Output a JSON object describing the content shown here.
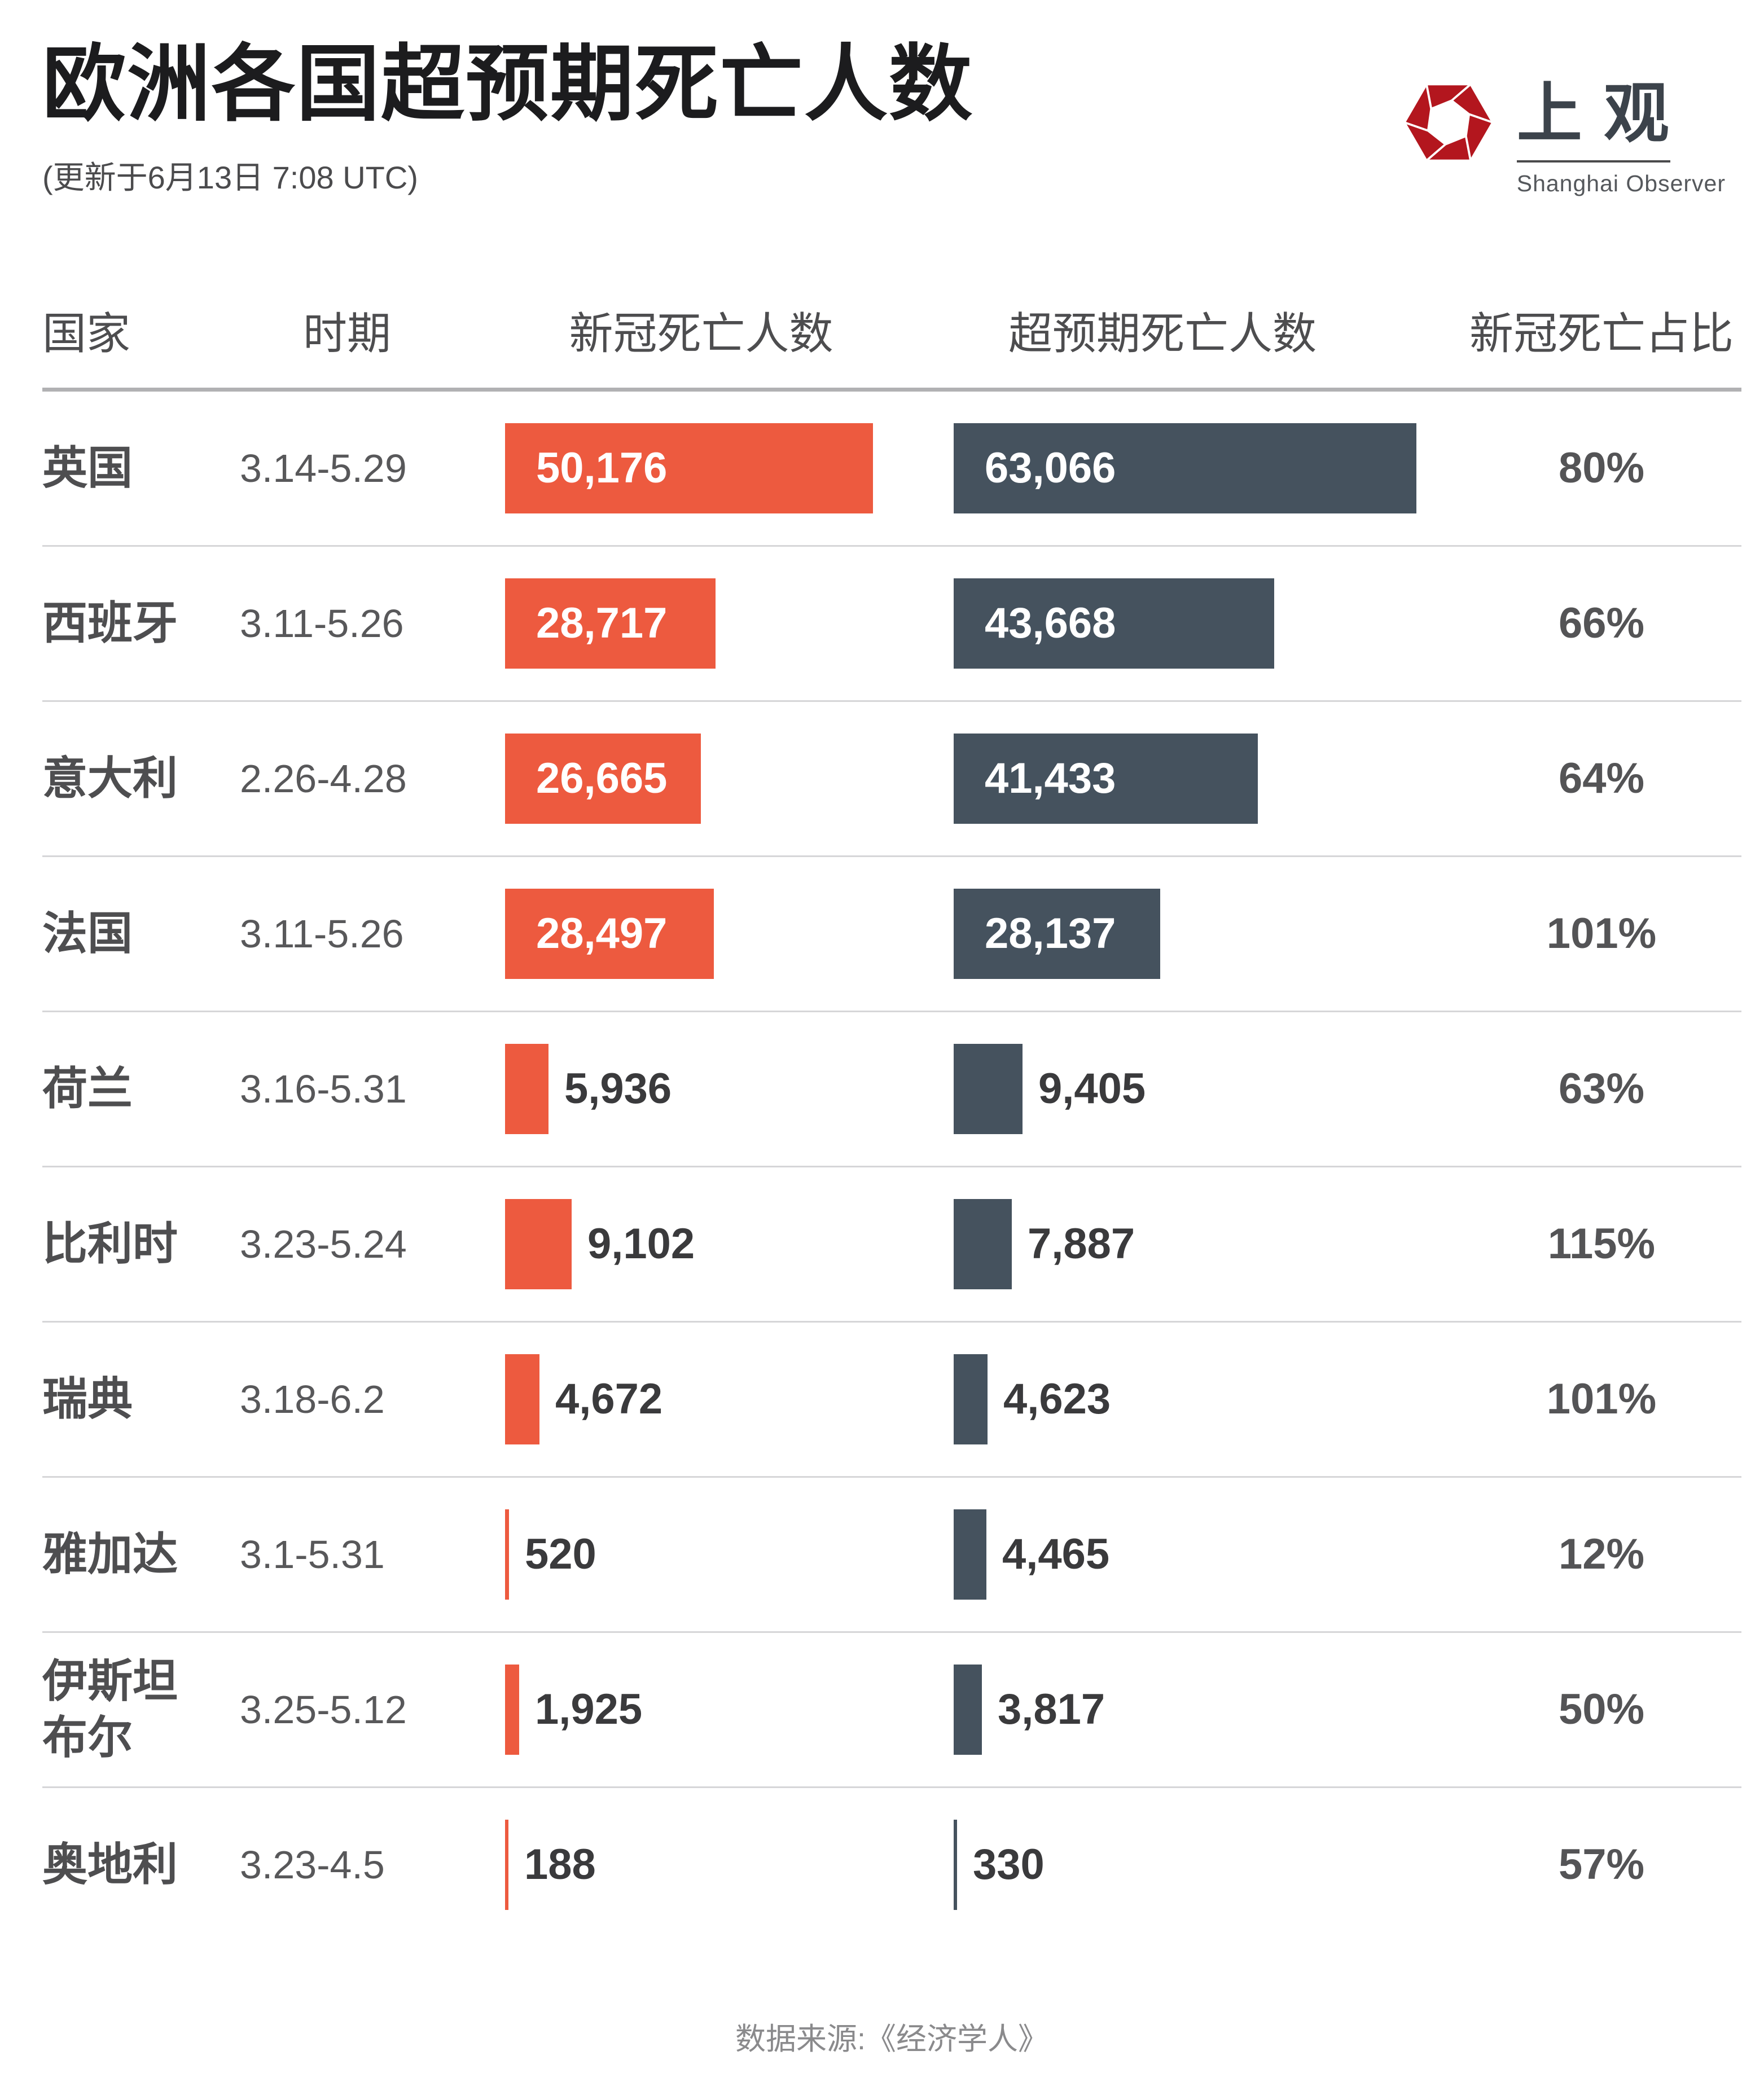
{
  "page": {
    "title": "欧洲各国超预期死亡人数",
    "subtitle": "(更新于6月13日 7:08 UTC)",
    "source": "数据来源:《经济学人》"
  },
  "logo": {
    "cn": "上观",
    "en": "Shanghai Observer",
    "red": "#b3161e"
  },
  "colors": {
    "covid_bar": "#ed5a3f",
    "excess_bar": "#45525e",
    "title_text": "#1c1c1e",
    "divider": "#d6d6d8"
  },
  "table": {
    "headers": [
      "国家",
      "时期",
      "新冠死亡人数",
      "超预期死亡人数",
      "新冠死亡占比"
    ],
    "rows": [
      {
        "country": "英国",
        "period": "3.14-5.29",
        "covid_label": "50,176",
        "covid_value": 50176,
        "excess_label": "63,066",
        "excess_value": 63066,
        "pct": "80%"
      },
      {
        "country": "西班牙",
        "period": "3.11-5.26",
        "covid_label": "28,717",
        "covid_value": 28717,
        "excess_label": "43,668",
        "excess_value": 43668,
        "pct": "66%"
      },
      {
        "country": "意大利",
        "period": "2.26-4.28",
        "covid_label": "26,665",
        "covid_value": 26665,
        "excess_label": "41,433",
        "excess_value": 41433,
        "pct": "64%"
      },
      {
        "country": "法国",
        "period": "3.11-5.26",
        "covid_label": "28,497",
        "covid_value": 28497,
        "excess_label": "28,137",
        "excess_value": 28137,
        "pct": "101%"
      },
      {
        "country": "荷兰",
        "period": "3.16-5.31",
        "covid_label": "5,936",
        "covid_value": 5936,
        "excess_label": "9,405",
        "excess_value": 9405,
        "pct": "63%"
      },
      {
        "country": "比利时",
        "period": "3.23-5.24",
        "covid_label": "9,102",
        "covid_value": 9102,
        "excess_label": "7,887",
        "excess_value": 7887,
        "pct": "115%"
      },
      {
        "country": "瑞典",
        "period": "3.18-6.2",
        "covid_label": "4,672",
        "covid_value": 4672,
        "excess_label": "4,623",
        "excess_value": 4623,
        "pct": "101%"
      },
      {
        "country": "雅加达",
        "period": "3.1-5.31",
        "covid_label": "520",
        "covid_value": 520,
        "excess_label": "4,465",
        "excess_value": 4465,
        "pct": "12%"
      },
      {
        "country": "伊斯坦布尔",
        "period": "3.25-5.12",
        "covid_label": "1,925",
        "covid_value": 1925,
        "excess_label": "3,817",
        "excess_value": 3817,
        "pct": "50%"
      },
      {
        "country": "奥地利",
        "period": "3.23-4.5",
        "covid_label": "188",
        "covid_value": 188,
        "excess_label": "330",
        "excess_value": 330,
        "pct": "57%"
      }
    ]
  },
  "chart_data": {
    "type": "bar",
    "orientation": "horizontal",
    "title": "欧洲各国超预期死亡人数",
    "subtitle": "(更新于6月13日 7:08 UTC)",
    "categories": [
      "英国",
      "西班牙",
      "意大利",
      "法国",
      "荷兰",
      "比利时",
      "瑞典",
      "雅加达",
      "伊斯坦布尔",
      "奥地利"
    ],
    "periods": [
      "3.14-5.29",
      "3.11-5.26",
      "2.26-4.28",
      "3.11-5.26",
      "3.16-5.31",
      "3.23-5.24",
      "3.18-6.2",
      "3.1-5.31",
      "3.25-5.12",
      "3.23-4.5"
    ],
    "series": [
      {
        "name": "新冠死亡人数",
        "color": "#ed5a3f",
        "values": [
          50176,
          28717,
          26665,
          28497,
          5936,
          9102,
          4672,
          520,
          1925,
          188
        ]
      },
      {
        "name": "超预期死亡人数",
        "color": "#45525e",
        "values": [
          63066,
          43668,
          41433,
          28137,
          9405,
          7887,
          4623,
          4465,
          3817,
          330
        ]
      }
    ],
    "covid_share_pct": [
      "80%",
      "66%",
      "64%",
      "101%",
      "63%",
      "115%",
      "101%",
      "12%",
      "50%",
      "57%"
    ],
    "value_labels_shown": true,
    "grid": false,
    "legend_position": "column-headers",
    "source": "数据来源:《经济学人》"
  }
}
